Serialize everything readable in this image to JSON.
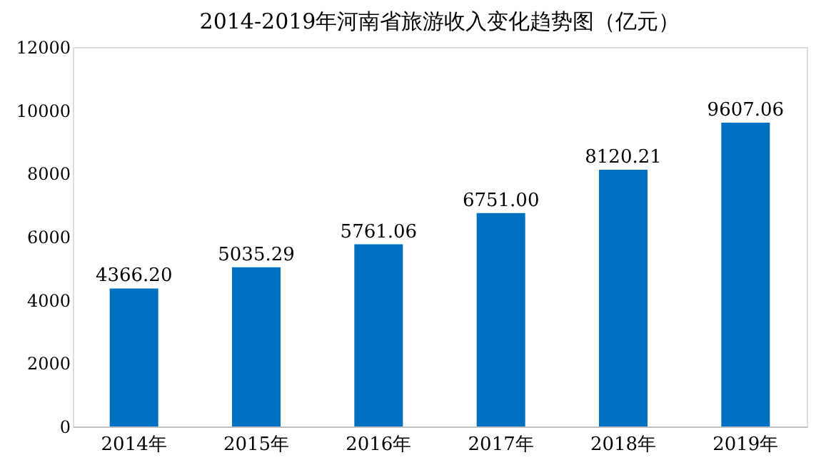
{
  "chart_data": {
    "type": "bar",
    "title": "2014-2019年河南省旅游收入变化趋势图（亿元）",
    "categories": [
      "2014年",
      "2015年",
      "2016年",
      "2017年",
      "2018年",
      "2019年"
    ],
    "values": [
      4366.2,
      5035.29,
      5761.06,
      6751.0,
      8120.21,
      9607.06
    ],
    "value_labels": [
      "4366.20",
      "5035.29",
      "5761.06",
      "6751.00",
      "8120.21",
      "9607.06"
    ],
    "color": "#0070c0",
    "ylim": [
      0,
      12000
    ],
    "yticks": [
      0,
      2000,
      4000,
      6000,
      8000,
      10000,
      12000
    ],
    "grid": false
  }
}
